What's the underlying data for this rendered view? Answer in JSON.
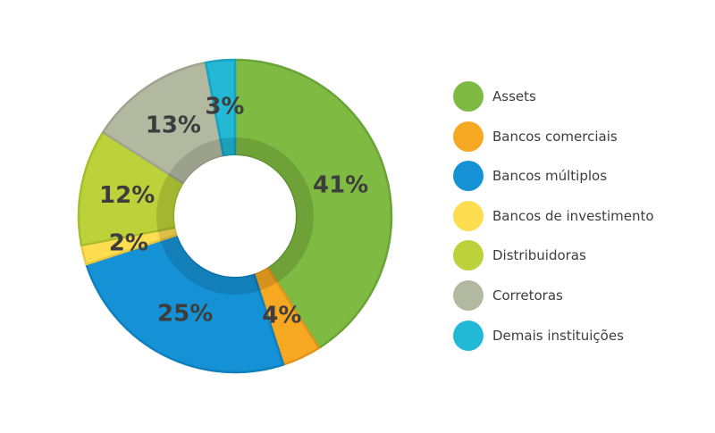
{
  "chart_data": {
    "type": "pie",
    "donut": true,
    "title": "",
    "legend_position": "right",
    "slices": [
      {
        "label": "Assets",
        "value": 41,
        "value_label": "41%",
        "color": "#7fba42",
        "edge": "#6aa336"
      },
      {
        "label": "Bancos comerciais",
        "value": 4,
        "value_label": "4%",
        "color": "#f7a823",
        "edge": "#e0951a"
      },
      {
        "label": "Bancos múltiplos",
        "value": 25,
        "value_label": "25%",
        "color": "#1592d5",
        "edge": "#0f7fbd"
      },
      {
        "label": "Bancos de investimento",
        "value": 2,
        "value_label": "2%",
        "color": "#fedd50",
        "edge": "#e9c83f"
      },
      {
        "label": "Distribuidoras",
        "value": 12,
        "value_label": "12%",
        "color": "#bcd23a",
        "edge": "#a7bd2c"
      },
      {
        "label": "Corretoras",
        "value": 13,
        "value_label": "13%",
        "color": "#b3b9a0",
        "edge": "#9fa58c"
      },
      {
        "label": "Demais instituições",
        "value": 3,
        "value_label": "3%",
        "color": "#22b8d6",
        "edge": "#1aa3bf"
      }
    ]
  }
}
